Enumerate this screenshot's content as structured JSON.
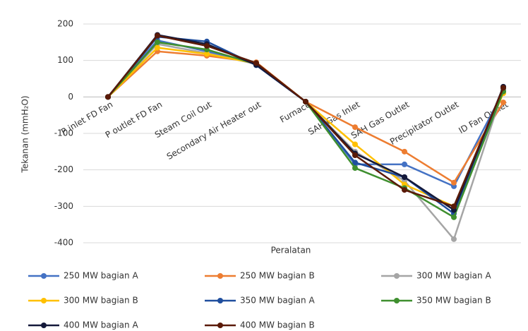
{
  "chart_data": {
    "type": "line",
    "x_label": "Peralatan",
    "y_label": "Tekanan (mmH₂O)",
    "categories": [
      "P inlet FD Fan",
      "P outlet FD Fan",
      "Steam Coil Out",
      "Secondary Air Heater out",
      "Furnace",
      "SAH Gas Inlet",
      "SAH Gas Outlet",
      "Precipitator Outlet",
      "ID Fan Outlet"
    ],
    "series": [
      {
        "name": "250 MW bagian A",
        "color": "#4472c4",
        "values": [
          0,
          155,
          125,
          90,
          -13,
          -185,
          -185,
          -245,
          15
        ]
      },
      {
        "name": "250 MW bagian B",
        "color": "#ed7d31",
        "values": [
          0,
          125,
          113,
          95,
          -13,
          -83,
          -150,
          -235,
          -15
        ]
      },
      {
        "name": "300 MW bagian A",
        "color": "#a5a5a5",
        "values": [
          0,
          145,
          120,
          90,
          -13,
          -150,
          -230,
          -390,
          20
        ]
      },
      {
        "name": "300 MW bagian B",
        "color": "#ffc000",
        "values": [
          0,
          135,
          118,
          92,
          -13,
          -130,
          -240,
          -300,
          10
        ]
      },
      {
        "name": "350 MW bagian A",
        "color": "#1f4e9e",
        "values": [
          0,
          165,
          152,
          87,
          -13,
          -180,
          -220,
          -320,
          25
        ]
      },
      {
        "name": "350 MW bagian B",
        "color": "#3f8f2f",
        "values": [
          0,
          150,
          130,
          90,
          -13,
          -195,
          -250,
          -330,
          15
        ]
      },
      {
        "name": "400 MW bagian A",
        "color": "#14193a",
        "values": [
          0,
          170,
          145,
          88,
          -13,
          -155,
          -220,
          -310,
          28
        ]
      },
      {
        "name": "400 MW bagian B",
        "color": "#5a1a08",
        "values": [
          0,
          168,
          140,
          93,
          -13,
          -160,
          -255,
          -300,
          25
        ]
      }
    ],
    "ylim": [
      -400,
      200
    ],
    "yticks": [
      -400,
      -300,
      -200,
      -100,
      0,
      100,
      200
    ],
    "grid": true
  }
}
